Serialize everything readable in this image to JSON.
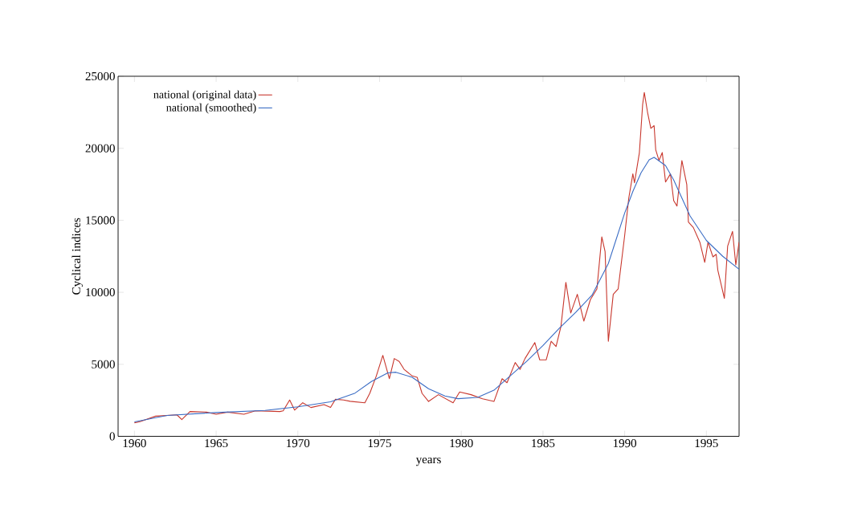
{
  "chart_data": {
    "type": "line",
    "xlabel": "years",
    "ylabel": "Cyclical indices",
    "xlim": [
      1959,
      1997
    ],
    "ylim": [
      0,
      25000
    ],
    "xticks": [
      1960,
      1965,
      1970,
      1975,
      1980,
      1985,
      1990,
      1995
    ],
    "yticks": [
      0,
      5000,
      10000,
      15000,
      20000,
      25000
    ],
    "legend": "top left",
    "grid": false,
    "marker": "none",
    "line_style": "solid",
    "series": [
      {
        "name": "national (original data)",
        "color": "#c8372d",
        "x": [
          1960,
          1960.3,
          1961.3,
          1962.6,
          1962.9,
          1963.4,
          1964.4,
          1965,
          1965.7,
          1966.7,
          1967.4,
          1968.9,
          1969.1,
          1969.5,
          1969.8,
          1970.3,
          1970.8,
          1971.6,
          1972,
          1972.3,
          1972.8,
          1973.2,
          1974.1,
          1974.4,
          1974.8,
          1975.2,
          1975.6,
          1975.9,
          1976.2,
          1976.5,
          1977,
          1977.3,
          1977.6,
          1978,
          1978.6,
          1979.5,
          1979.9,
          1980.6,
          1981.3,
          1982,
          1982.5,
          1982.8,
          1983.3,
          1983.6,
          1983.9,
          1984.5,
          1984.8,
          1985.2,
          1985.5,
          1985.8,
          1986.1,
          1986.4,
          1986.7,
          1987.1,
          1987.5,
          1987.9,
          1988.3,
          1988.6,
          1988.8,
          1989,
          1989.3,
          1989.6,
          1990,
          1990.25,
          1990.5,
          1990.6,
          1990.9,
          1991.1,
          1991.2,
          1991.4,
          1991.6,
          1991.8,
          1991.9,
          1992.1,
          1992.3,
          1992.5,
          1992.8,
          1993,
          1993.2,
          1993.5,
          1993.8,
          1993.9,
          1994.2,
          1994.6,
          1994.9,
          1995.1,
          1995.4,
          1995.6,
          1995.7,
          1996.1,
          1996.3,
          1996.6,
          1996.8,
          1997
        ],
        "values": [
          940,
          1000,
          1400,
          1490,
          1160,
          1720,
          1680,
          1530,
          1680,
          1530,
          1770,
          1720,
          1770,
          2520,
          1820,
          2330,
          2000,
          2200,
          2010,
          2570,
          2520,
          2430,
          2330,
          2980,
          4190,
          5620,
          4000,
          5400,
          5200,
          4650,
          4190,
          4100,
          2980,
          2420,
          2890,
          2330,
          3080,
          2890,
          2610,
          2420,
          4000,
          3720,
          5120,
          4650,
          5400,
          6510,
          5310,
          5310,
          6600,
          6230,
          7630,
          10690,
          8560,
          9860,
          8000,
          9490,
          10230,
          13850,
          12830,
          6600,
          9860,
          10230,
          13950,
          16540,
          18220,
          17600,
          19700,
          23050,
          23880,
          22490,
          21380,
          21570,
          19890,
          19150,
          19700,
          17660,
          18220,
          16360,
          15990,
          19150,
          17480,
          14870,
          14500,
          13480,
          12080,
          13480,
          12460,
          12640,
          11530,
          9580,
          13200,
          14230,
          11900,
          13480
        ]
      },
      {
        "name": "national (smoothed)",
        "color": "#3a6cc4",
        "x": [
          1960,
          1962,
          1965,
          1968,
          1970,
          1972,
          1973.5,
          1974.5,
          1975.5,
          1976,
          1977,
          1978,
          1979,
          1979.8,
          1981,
          1982,
          1983,
          1984,
          1985,
          1986,
          1987,
          1988,
          1989,
          1990,
          1990.5,
          1991,
          1991.5,
          1991.8,
          1992.5,
          1993,
          1994,
          1995,
          1996,
          1997
        ],
        "values": [
          1000,
          1450,
          1650,
          1800,
          2050,
          2400,
          3000,
          3800,
          4400,
          4450,
          4100,
          3300,
          2800,
          2610,
          2700,
          3200,
          4200,
          5200,
          6300,
          7500,
          8600,
          9800,
          12000,
          15500,
          17000,
          18300,
          19200,
          19370,
          18800,
          17800,
          15300,
          13600,
          12500,
          11600
        ]
      }
    ]
  }
}
